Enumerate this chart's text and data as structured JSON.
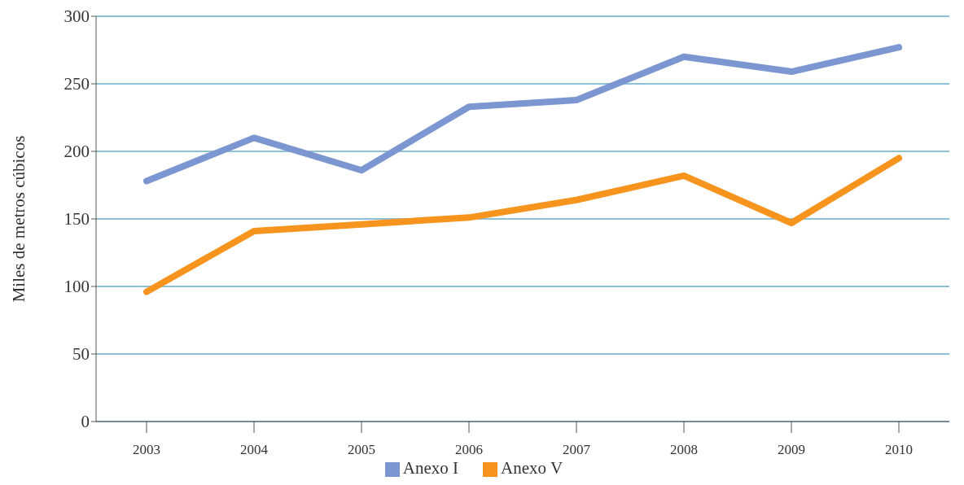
{
  "chart_data": {
    "type": "line",
    "ylabel": "Miles de metros cúbicos",
    "categories": [
      "2003",
      "2004",
      "2005",
      "2006",
      "2007",
      "2008",
      "2009",
      "2010"
    ],
    "series": [
      {
        "name": "Anexo I",
        "color": "#7b96d0",
        "values": [
          178,
          210,
          186,
          233,
          238,
          270,
          259,
          277
        ]
      },
      {
        "name": "Anexo V",
        "color": "#f7941d",
        "values": [
          96,
          141,
          146,
          151,
          164,
          182,
          147,
          195
        ]
      }
    ],
    "ylim": [
      0,
      300
    ],
    "yticks": [
      0,
      50,
      100,
      150,
      200,
      250,
      300
    ],
    "grid": "y",
    "legend": "bottom",
    "marker": "none",
    "line_style": "solid"
  }
}
